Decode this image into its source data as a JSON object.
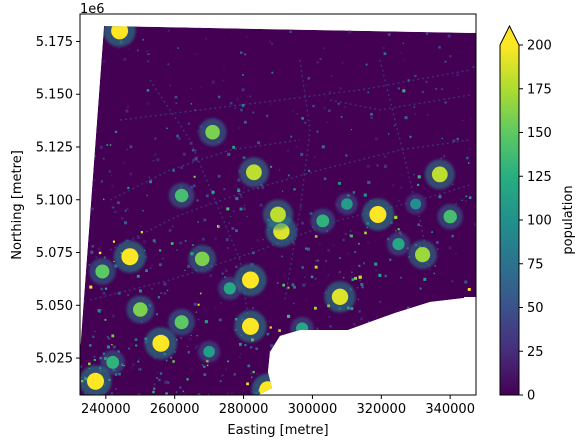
{
  "chart_data": {
    "type": "heatmap",
    "xlabel": "Easting [metre]",
    "ylabel": "Northing [metre]",
    "offset_label": "1e6",
    "xlim": [
      232500,
      347500
    ],
    "ylim": [
      5007500,
      5188000
    ],
    "xticks": [
      240000,
      260000,
      280000,
      300000,
      320000,
      340000
    ],
    "xtick_labels": [
      "240000",
      "260000",
      "280000",
      "300000",
      "320000",
      "340000"
    ],
    "yticks": [
      5025000,
      5050000,
      5075000,
      5100000,
      5125000,
      5150000,
      5175000
    ],
    "ytick_labels": [
      "5.025",
      "5.050",
      "5.075",
      "5.100",
      "5.125",
      "5.150",
      "5.175"
    ],
    "colorbar": {
      "label": "population",
      "colormap": "viridis",
      "vmin": 0,
      "vmax": 200,
      "extend": "max",
      "ticks": [
        0,
        25,
        50,
        75,
        100,
        125,
        150,
        175,
        200
      ],
      "tick_labels": [
        "0",
        "25",
        "50",
        "75",
        "100",
        "125",
        "150",
        "175",
        "200"
      ]
    },
    "background_value": 0,
    "hotspots": [
      {
        "x": 256000,
        "y": 5032000,
        "value": 200
      },
      {
        "x": 250000,
        "y": 5048000,
        "value": 160
      },
      {
        "x": 262000,
        "y": 5042000,
        "value": 150
      },
      {
        "x": 282000,
        "y": 5062000,
        "value": 200
      },
      {
        "x": 282000,
        "y": 5040000,
        "value": 200
      },
      {
        "x": 276000,
        "y": 5058000,
        "value": 120
      },
      {
        "x": 247000,
        "y": 5073000,
        "value": 200
      },
      {
        "x": 268000,
        "y": 5072000,
        "value": 160
      },
      {
        "x": 291000,
        "y": 5085000,
        "value": 190
      },
      {
        "x": 290000,
        "y": 5093000,
        "value": 180
      },
      {
        "x": 308000,
        "y": 5054000,
        "value": 190
      },
      {
        "x": 319000,
        "y": 5093000,
        "value": 200
      },
      {
        "x": 332000,
        "y": 5074000,
        "value": 170
      },
      {
        "x": 303000,
        "y": 5090000,
        "value": 130
      },
      {
        "x": 283000,
        "y": 5113000,
        "value": 180
      },
      {
        "x": 262000,
        "y": 5102000,
        "value": 140
      },
      {
        "x": 237000,
        "y": 5014000,
        "value": 200
      },
      {
        "x": 242000,
        "y": 5023000,
        "value": 130
      },
      {
        "x": 287000,
        "y": 5010000,
        "value": 200
      },
      {
        "x": 239000,
        "y": 5066000,
        "value": 150
      },
      {
        "x": 244000,
        "y": 5180000,
        "value": 200
      },
      {
        "x": 271000,
        "y": 5132000,
        "value": 160
      },
      {
        "x": 337000,
        "y": 5112000,
        "value": 180
      },
      {
        "x": 325000,
        "y": 5079000,
        "value": 120
      },
      {
        "x": 310000,
        "y": 5098000,
        "value": 110
      },
      {
        "x": 297000,
        "y": 5039000,
        "value": 120
      },
      {
        "x": 270000,
        "y": 5028000,
        "value": 110
      },
      {
        "x": 330000,
        "y": 5098000,
        "value": 100
      },
      {
        "x": 340000,
        "y": 5092000,
        "value": 140
      }
    ]
  }
}
